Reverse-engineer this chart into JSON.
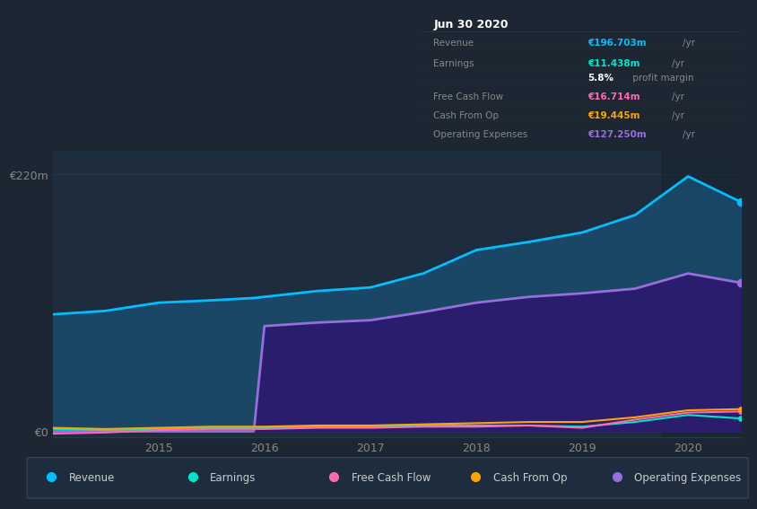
{
  "background_color": "#1c2733",
  "plot_bg_color": "#1e2d3d",
  "title_box": {
    "title": "Jun 30 2020",
    "rows": [
      {
        "label": "Revenue",
        "value": "€196.703m",
        "unit": "/yr",
        "value_color": "#00bfff"
      },
      {
        "label": "Earnings",
        "value": "€11.438m",
        "unit": "/yr",
        "value_color": "#00e5cc"
      },
      {
        "label": "",
        "value": "5.8%",
        "unit": " profit margin",
        "value_color": "#ffffff"
      },
      {
        "label": "Free Cash Flow",
        "value": "€16.714m",
        "unit": "/yr",
        "value_color": "#ff69b4"
      },
      {
        "label": "Cash From Op",
        "value": "€19.445m",
        "unit": "/yr",
        "value_color": "#ffa500"
      },
      {
        "label": "Operating Expenses",
        "value": "€127.250m",
        "unit": "/yr",
        "value_color": "#9370db"
      }
    ]
  },
  "years": [
    2014.0,
    2014.5,
    2015.0,
    2015.5,
    2015.9,
    2016.0,
    2016.5,
    2017.0,
    2017.5,
    2018.0,
    2018.5,
    2019.0,
    2019.5,
    2020.0,
    2020.5
  ],
  "revenue": [
    100,
    103,
    110,
    112,
    114,
    115,
    120,
    123,
    135,
    155,
    162,
    170,
    185,
    218,
    196
  ],
  "op_expenses": [
    0,
    0,
    0,
    0,
    0,
    90,
    93,
    95,
    102,
    110,
    115,
    118,
    122,
    135,
    127
  ],
  "earnings": [
    2,
    1,
    2,
    3,
    3,
    3,
    4,
    4,
    5,
    5,
    5,
    4,
    8,
    14,
    11
  ],
  "free_cash": [
    -2,
    -1,
    1,
    2,
    2,
    2,
    3,
    3,
    4,
    4,
    5,
    3,
    10,
    16,
    17
  ],
  "cash_from_op": [
    3,
    2,
    3,
    4,
    4,
    4,
    5,
    5,
    6,
    7,
    8,
    8,
    12,
    18,
    19
  ],
  "revenue_color": "#00bfff",
  "op_expenses_color": "#9370db",
  "earnings_color": "#00e5cc",
  "free_cash_color": "#ff69b4",
  "cash_from_op_color": "#ffa500",
  "ylim": [
    -5,
    240
  ],
  "yticks": [
    0,
    220
  ],
  "ytick_labels": [
    "€0",
    "€220m"
  ],
  "xticks": [
    2015,
    2016,
    2017,
    2018,
    2019,
    2020
  ],
  "legend_items": [
    {
      "label": "Revenue",
      "color": "#00bfff"
    },
    {
      "label": "Earnings",
      "color": "#00e5cc"
    },
    {
      "label": "Free Cash Flow",
      "color": "#ff69b4"
    },
    {
      "label": "Cash From Op",
      "color": "#ffa500"
    },
    {
      "label": "Operating Expenses",
      "color": "#9370db"
    }
  ]
}
